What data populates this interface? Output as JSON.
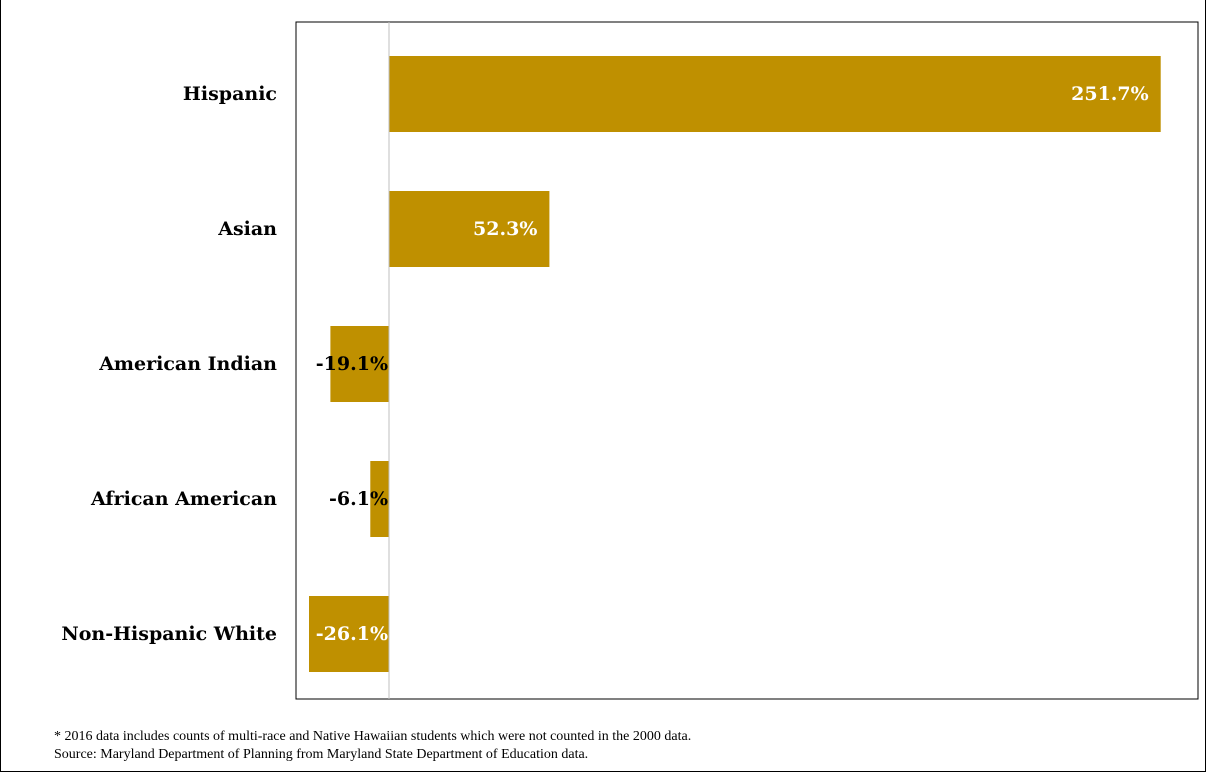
{
  "chart_data": {
    "type": "bar",
    "orientation": "horizontal",
    "categories": [
      "Hispanic",
      "Asian",
      "American Indian",
      "African American",
      "Non-Hispanic White"
    ],
    "values": [
      251.7,
      52.3,
      -19.1,
      -6.1,
      -26.1
    ],
    "value_labels": [
      "251.7%",
      "52.3%",
      "-19.1%",
      "-6.1%",
      "-26.1%"
    ],
    "title": "",
    "xlabel": "",
    "ylabel": "",
    "xlim": [
      -26.1,
      251.7
    ],
    "grid": false,
    "legend": "none",
    "bar_color": "#BF9000",
    "label_color_inside": "#FFFFFF",
    "label_color_outside": "#000000"
  },
  "footnote": {
    "note": "* 2016 data includes counts of multi-race and Native Hawaiian students which were not counted in the 2000 data.",
    "source": "Source: Maryland Department of Planning from Maryland State Department of Education data."
  }
}
